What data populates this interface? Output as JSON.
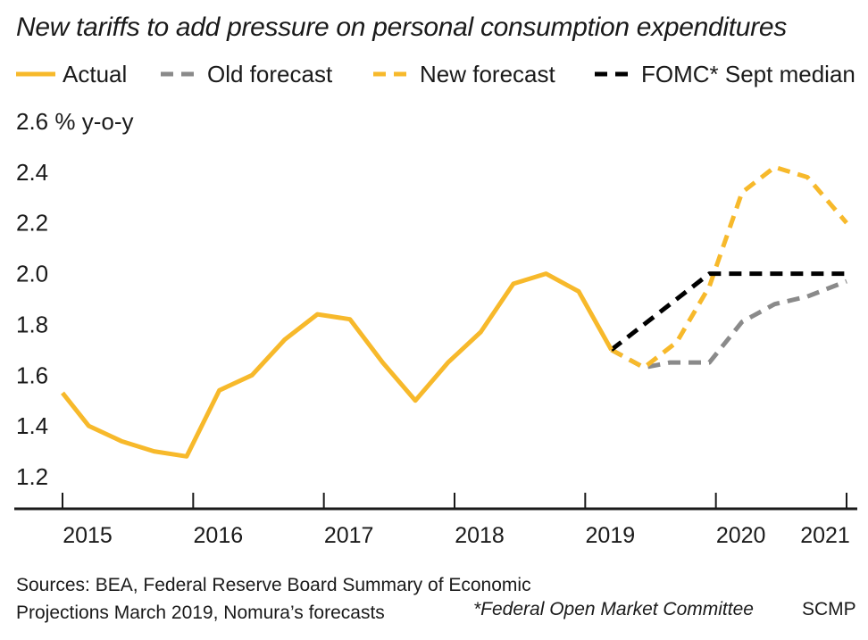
{
  "chart_data": {
    "type": "line",
    "title": "New tariffs to add pressure on personal consumption expenditures",
    "ylabel": "% y-o-y",
    "ylim": [
      1.2,
      2.6
    ],
    "yticks": [
      "1.2",
      "1.4",
      "1.6",
      "1.8",
      "2.0",
      "2.2",
      "2.4",
      "2.6"
    ],
    "xlim": [
      2015.0,
      2021.0
    ],
    "xticks": [
      "2015",
      "2016",
      "2017",
      "2018",
      "2019",
      "2020",
      "2021"
    ],
    "grid": false,
    "legend_position": "top",
    "series": [
      {
        "name": "Actual",
        "style": "solid",
        "color": "#f7b92b",
        "x": [
          2015.0,
          2015.2,
          2015.45,
          2015.7,
          2015.95,
          2016.2,
          2016.45,
          2016.7,
          2016.95,
          2017.2,
          2017.45,
          2017.7,
          2017.95,
          2018.2,
          2018.45,
          2018.7,
          2018.95,
          2019.2
        ],
        "y": [
          1.53,
          1.4,
          1.34,
          1.3,
          1.28,
          1.54,
          1.6,
          1.74,
          1.84,
          1.82,
          1.65,
          1.5,
          1.65,
          1.77,
          1.96,
          2.0,
          1.93,
          1.7
        ]
      },
      {
        "name": "Old forecast",
        "style": "dashed",
        "color": "#8a8a8a",
        "x": [
          2019.2,
          2019.45,
          2019.65,
          2019.95,
          2020.2,
          2020.45,
          2020.7,
          2021.0
        ],
        "y": [
          1.7,
          1.63,
          1.65,
          1.65,
          1.81,
          1.88,
          1.91,
          1.97
        ]
      },
      {
        "name": "New forecast",
        "style": "dashed",
        "color": "#f7b92b",
        "x": [
          2019.2,
          2019.45,
          2019.7,
          2019.95,
          2020.2,
          2020.45,
          2020.7,
          2021.0
        ],
        "y": [
          1.7,
          1.63,
          1.73,
          1.95,
          2.32,
          2.42,
          2.38,
          2.2
        ]
      },
      {
        "name": "FOMC* Sept median",
        "style": "dashed",
        "color": "#000000",
        "x": [
          2019.2,
          2019.95,
          2021.0
        ],
        "y": [
          1.7,
          2.0,
          2.0
        ]
      }
    ]
  },
  "footer": {
    "source_line1": "Sources: BEA, Federal Reserve Board Summary of Economic",
    "source_line2": "Projections March 2019, Nomura’s forecasts",
    "note": "*Federal Open Market Committee",
    "credit": "SCMP"
  }
}
